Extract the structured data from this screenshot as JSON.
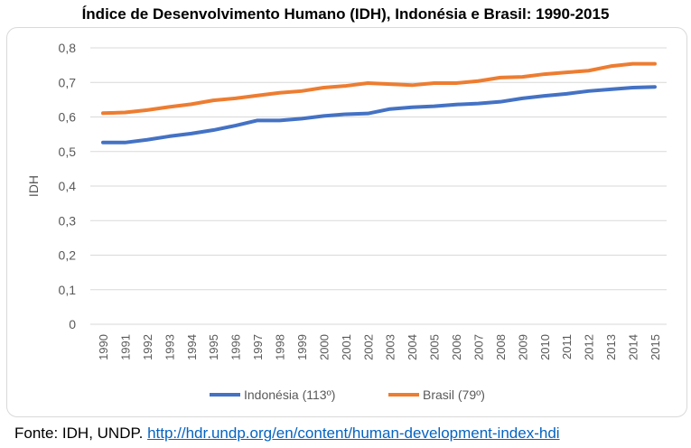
{
  "chart_data": {
    "type": "line",
    "title": "Índice de Desenvolvimento Humano (IDH), Indonésia e Brasil: 1990-2015",
    "xlabel": "",
    "ylabel": "IDH",
    "ylim": [
      0,
      0.8
    ],
    "yticks": [
      "0",
      "0,1",
      "0,2",
      "0,3",
      "0,4",
      "0,5",
      "0,6",
      "0,7",
      "0,8"
    ],
    "categories": [
      "1990",
      "1991",
      "1992",
      "1993",
      "1994",
      "1995",
      "1996",
      "1997",
      "1998",
      "1999",
      "2000",
      "2001",
      "2002",
      "2003",
      "2004",
      "2005",
      "2006",
      "2007",
      "2008",
      "2009",
      "2010",
      "2011",
      "2012",
      "2013",
      "2014",
      "2015"
    ],
    "grid": true,
    "legend": "bottom",
    "series": [
      {
        "name": "Indonésia (113º)",
        "color": "#4472c4",
        "values": [
          0.526,
          0.526,
          0.534,
          0.544,
          0.552,
          0.562,
          0.575,
          0.59,
          0.59,
          0.595,
          0.603,
          0.608,
          0.61,
          0.623,
          0.628,
          0.631,
          0.636,
          0.639,
          0.644,
          0.654,
          0.661,
          0.667,
          0.675,
          0.68,
          0.685,
          0.687
        ]
      },
      {
        "name": "Brasil (79º)",
        "color": "#ed7d31",
        "values": [
          0.611,
          0.613,
          0.62,
          0.629,
          0.637,
          0.648,
          0.654,
          0.662,
          0.67,
          0.675,
          0.685,
          0.69,
          0.698,
          0.695,
          0.692,
          0.698,
          0.698,
          0.704,
          0.714,
          0.716,
          0.724,
          0.729,
          0.734,
          0.747,
          0.754,
          0.754
        ]
      }
    ]
  },
  "source": {
    "text": "Fonte: IDH, UNDP. ",
    "link": "http://hdr.undp.org/en/content/human-development-index-hdi"
  }
}
